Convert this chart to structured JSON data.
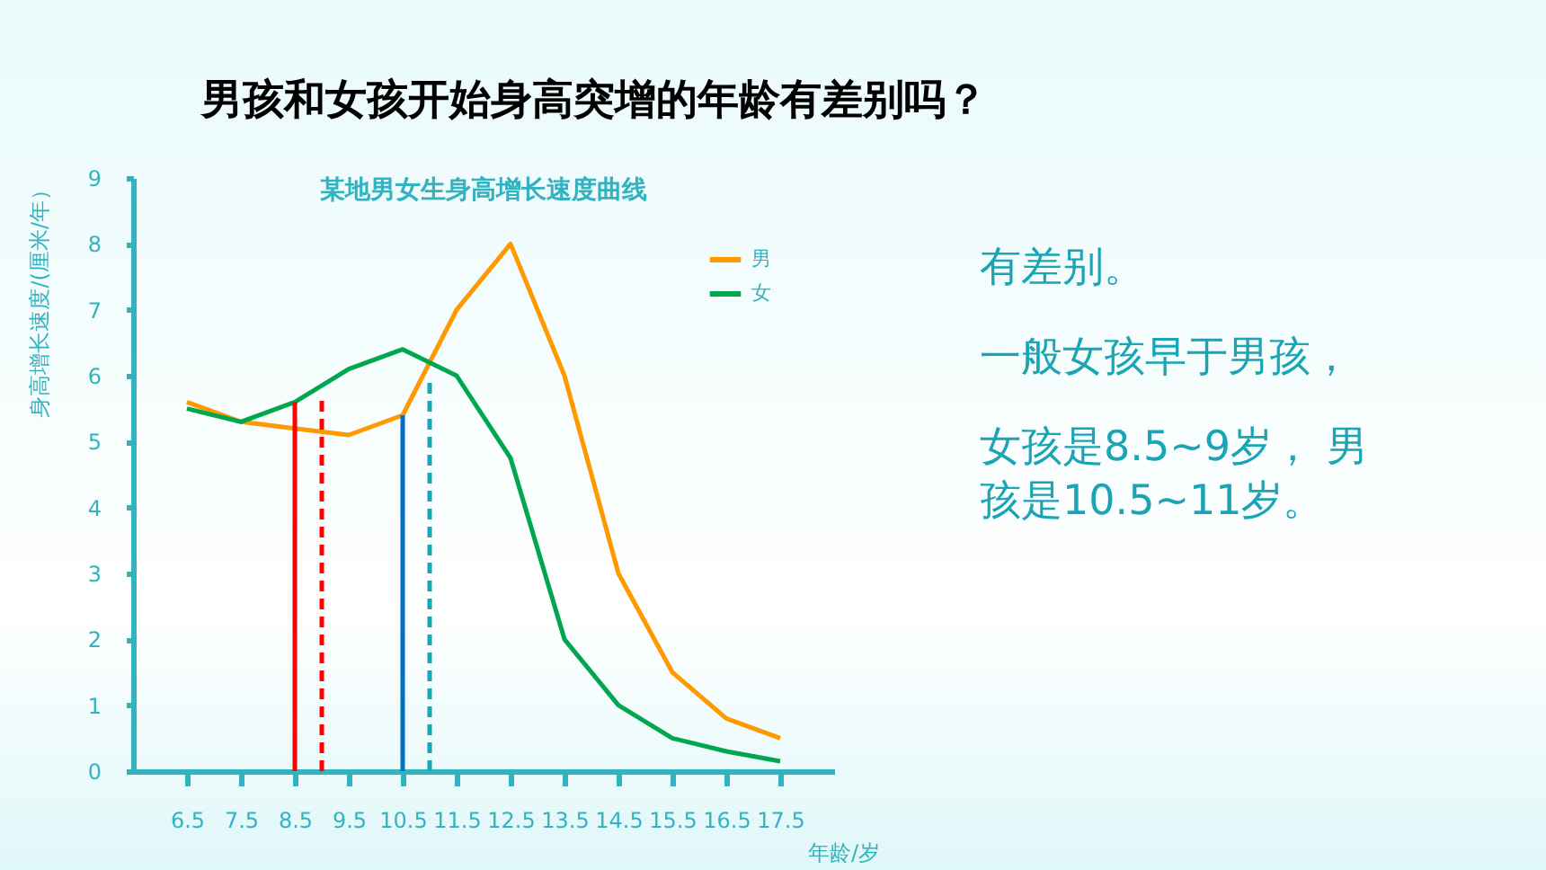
{
  "chart_data": {
    "type": "line",
    "title": "某地男女生身高增长速度曲线",
    "xlabel": "年龄/岁",
    "ylabel": "身高增长速度/(厘米/年）",
    "x": [
      6.5,
      7.5,
      8.5,
      9.5,
      10.5,
      11.5,
      12.5,
      13.5,
      14.5,
      15.5,
      16.5,
      17.5
    ],
    "series": [
      {
        "name": "男",
        "color": "#ff9900",
        "values": [
          5.6,
          5.3,
          5.2,
          5.1,
          5.4,
          7.0,
          8.0,
          6.0,
          3.0,
          1.5,
          0.8,
          0.5
        ]
      },
      {
        "name": "女",
        "color": "#00a650",
        "values": [
          5.5,
          5.3,
          5.6,
          6.1,
          6.4,
          6.0,
          4.75,
          2.0,
          1.0,
          0.5,
          0.3,
          0.15
        ]
      },
      {
        "color": "#ff0000",
        "x": [
          8.5,
          8.5
        ],
        "values": [
          0,
          5.6
        ],
        "line_style": "solid"
      },
      {
        "color": "#ff0000",
        "x": [
          9,
          9
        ],
        "values": [
          0,
          5.65
        ],
        "line_style": "dashed"
      },
      {
        "color": "#0070c0",
        "x": [
          10.5,
          10.5
        ],
        "values": [
          0,
          5.4
        ],
        "line_style": "solid"
      },
      {
        "color": "#1aa5b5",
        "x": [
          11,
          11
        ],
        "values": [
          0,
          6.0
        ],
        "line_style": "dashed"
      }
    ],
    "xlim": [
      5.5,
      18.5
    ],
    "xticks": [
      6.5,
      7.5,
      8.5,
      9.5,
      10.5,
      11.5,
      12.5,
      13.5,
      14.5,
      15.5,
      16.5,
      17.5
    ],
    "ylim": [
      0,
      9
    ],
    "yticks": [
      0,
      1,
      2,
      3,
      4,
      5,
      6,
      7,
      8,
      9
    ],
    "grid": false,
    "legend": "top right",
    "marker": "none",
    "annotations": [
      "男孩和女孩开始身高突增的年龄有差别吗？",
      "有差别。",
      "一般女孩早于男孩，",
      "女孩是8.5~9岁， 男孩是10.5~11岁。"
    ]
  }
}
